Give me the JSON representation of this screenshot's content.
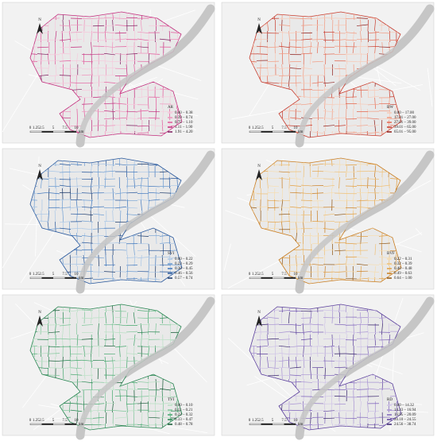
{
  "north": "N",
  "scale_labels": [
    "0",
    "1.25",
    "2.5",
    "5",
    "7.5",
    "10"
  ],
  "scale_unit": "km",
  "panels": [
    {
      "legend_title": "AR",
      "classes": [
        "0.00 – 0.38",
        "0.39 – 0.74",
        "0.75 – 1.10",
        "1.11 – 1.90",
        "1.91 – 4.20"
      ],
      "colors": [
        "#f6c9dc",
        "#ef94bd",
        "#e3569a",
        "#c22b7c",
        "#7d1c5e"
      ]
    },
    {
      "legend_title": "BW",
      "classes": [
        "0.00 – 17.00",
        "17.01 – 27.00",
        "27.01 – 39.00",
        "39.01 – 65.00",
        "65.01 – 95.00"
      ],
      "colors": [
        "#f8c9b6",
        "#f29a80",
        "#e4674f",
        "#c83b2d",
        "#8e1c18"
      ]
    },
    {
      "legend_title": "SVI",
      "classes": [
        "0.00 – 0.22",
        "0.23 – 0.29",
        "0.30 – 0.45",
        "0.46 – 0.56",
        "0.57 – 0.74"
      ],
      "colors": [
        "#a9c6e6",
        "#6f9ed3",
        "#3f76bc",
        "#24549a",
        "#163466"
      ]
    },
    {
      "legend_title": "BVF",
      "classes": [
        "0.22 – 0.31",
        "0.32 – 0.39",
        "0.40 – 0.48",
        "0.49 – 0.63",
        "0.64 – 1.00"
      ],
      "colors": [
        "#f6ddb0",
        "#efc178",
        "#e3a043",
        "#c97c1f",
        "#8f5410"
      ]
    },
    {
      "legend_title": "TVI",
      "classes": [
        "0.00 – 0.10",
        "0.11 – 0.21",
        "0.22 – 0.32",
        "0.33 – 0.47",
        "0.48 – 0.78"
      ],
      "colors": [
        "#b9e0c4",
        "#7fc79a",
        "#45a86e",
        "#25844f",
        "#0f5530"
      ]
    },
    {
      "legend_title": "RD",
      "classes": [
        "0.00 – 14.32",
        "14.33 – 16.94",
        "16.95 – 20.09",
        "20.10 – 24.55",
        "24.56 – 38.74"
      ],
      "colors": [
        "#cfc3e6",
        "#a893d3",
        "#7d62ba",
        "#5a3e9c",
        "#35206b"
      ]
    }
  ]
}
